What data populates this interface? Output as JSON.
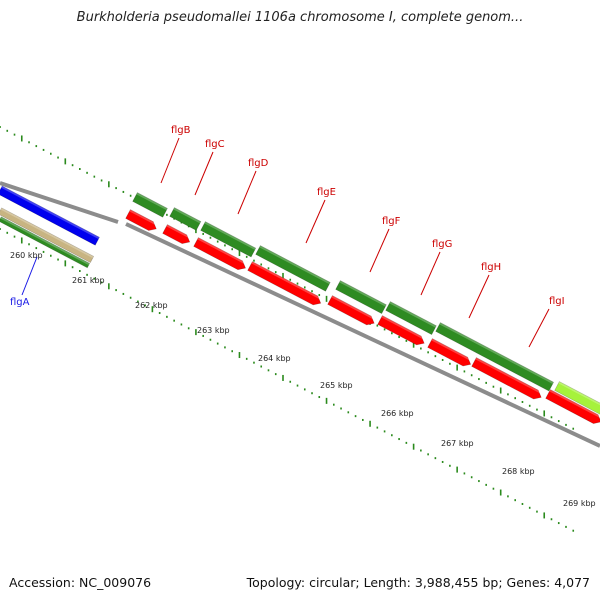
{
  "title": "Burkholderia pseudomallei 1106a chromosome I, complete genom...",
  "footer": {
    "accession": "Accession: NC_009076",
    "topology": "Topology: circular; Length: 3,988,455 bp; Genes: 4,077"
  },
  "ticks": [
    "260 kbp",
    "261 kbp",
    "262 kbp",
    "263 kbp",
    "264 kbp",
    "265 kbp",
    "266 kbp",
    "267 kbp",
    "268 kbp",
    "269 kbp"
  ],
  "genes": [
    "flgA",
    "flgB",
    "flgC",
    "flgD",
    "flgE",
    "flgF",
    "flgG",
    "flgH",
    "flgI"
  ],
  "colors": {
    "forward_track": "#2e8b22",
    "cds_track": "#ff0000",
    "gene_label": "#cc0000",
    "flga_label": "#1a1ae6",
    "blue_feature": "#0000ee",
    "tan_feature": "#c8b482",
    "lime_feature": "#a6f23c",
    "backbone": "#8c8c8c",
    "tick": "#2a8a1c"
  }
}
